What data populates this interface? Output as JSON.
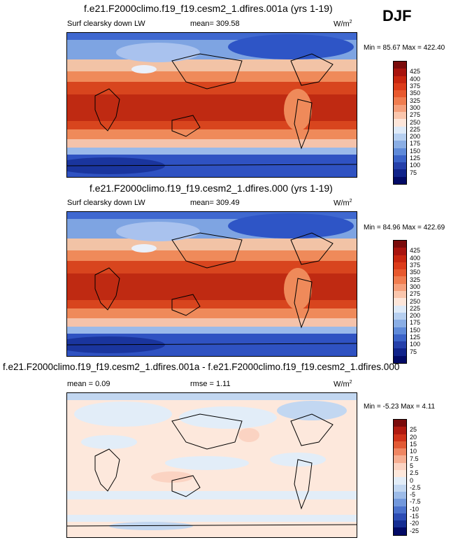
{
  "season": "DJF",
  "panels": [
    {
      "title": "f.e21.F2000climo.f19_f19.cesm2_1.dfires.001a (yrs 1-19)",
      "variable": "Surf clearsky down LW",
      "mean_label": "mean=",
      "mean_value": "309.58",
      "units_base": "W/m",
      "units_exp": "2",
      "min_label": "Min =",
      "min_value": "85.67",
      "max_label": "Max =",
      "max_value": "422.40",
      "colorbar": {
        "labels": [
          "425",
          "400",
          "375",
          "350",
          "325",
          "300",
          "275",
          "250",
          "225",
          "200",
          "175",
          "150",
          "125",
          "100",
          "75"
        ],
        "colors": [
          "#7a0b0b",
          "#a8140e",
          "#c8260f",
          "#dc3c1a",
          "#e8592e",
          "#f07d50",
          "#f5a07c",
          "#fac6ad",
          "#fde6da",
          "#deeaf8",
          "#b6cff0",
          "#8aaee5",
          "#5f8ad9",
          "#3b63c8",
          "#2540aa",
          "#10238a",
          "#020a66"
        ]
      }
    },
    {
      "title": "f.e21.F2000climo.f19_f19.cesm2_1.dfires.000 (yrs 1-19)",
      "variable": "Surf clearsky down LW",
      "mean_label": "mean=",
      "mean_value": "309.49",
      "units_base": "W/m",
      "units_exp": "2",
      "min_label": "Min =",
      "min_value": "84.96",
      "max_label": "Max =",
      "max_value": "422.69",
      "colorbar": {
        "labels": [
          "425",
          "400",
          "375",
          "350",
          "325",
          "300",
          "275",
          "250",
          "225",
          "200",
          "175",
          "150",
          "125",
          "100",
          "75"
        ],
        "colors": [
          "#7a0b0b",
          "#a8140e",
          "#c8260f",
          "#dc3c1a",
          "#e8592e",
          "#f07d50",
          "#f5a07c",
          "#fac6ad",
          "#fde6da",
          "#deeaf8",
          "#b6cff0",
          "#8aaee5",
          "#5f8ad9",
          "#3b63c8",
          "#2540aa",
          "#10238a",
          "#020a66"
        ]
      }
    },
    {
      "title": "f.e21.F2000climo.f19_f19.cesm2_1.dfires.001a - f.e21.F2000climo.f19_f19.cesm2_1.dfires.000",
      "mean_label": "mean =",
      "mean_value": "0.09",
      "rmse_label": "rmse =",
      "rmse_value": "1.11",
      "units_base": "W/m",
      "units_exp": "2",
      "min_label": "Min =",
      "min_value": "-5.23",
      "max_label": "Max =",
      "max_value": "4.11",
      "colorbar": {
        "labels": [
          "25",
          "20",
          "15",
          "10",
          "7.5",
          "5",
          "2.5",
          "0",
          "-2.5",
          "-5",
          "-7.5",
          "-10",
          "-15",
          "-20",
          "-25"
        ],
        "colors": [
          "#7a0b0b",
          "#b01a10",
          "#d0331a",
          "#e25a35",
          "#ef8663",
          "#f6ae92",
          "#fbd3c2",
          "#fde8dc",
          "#e2edf8",
          "#c2d7f1",
          "#9cbbe8",
          "#7298dc",
          "#4b72cc",
          "#2c4cb4",
          "#152d92",
          "#020a66"
        ]
      }
    }
  ]
}
